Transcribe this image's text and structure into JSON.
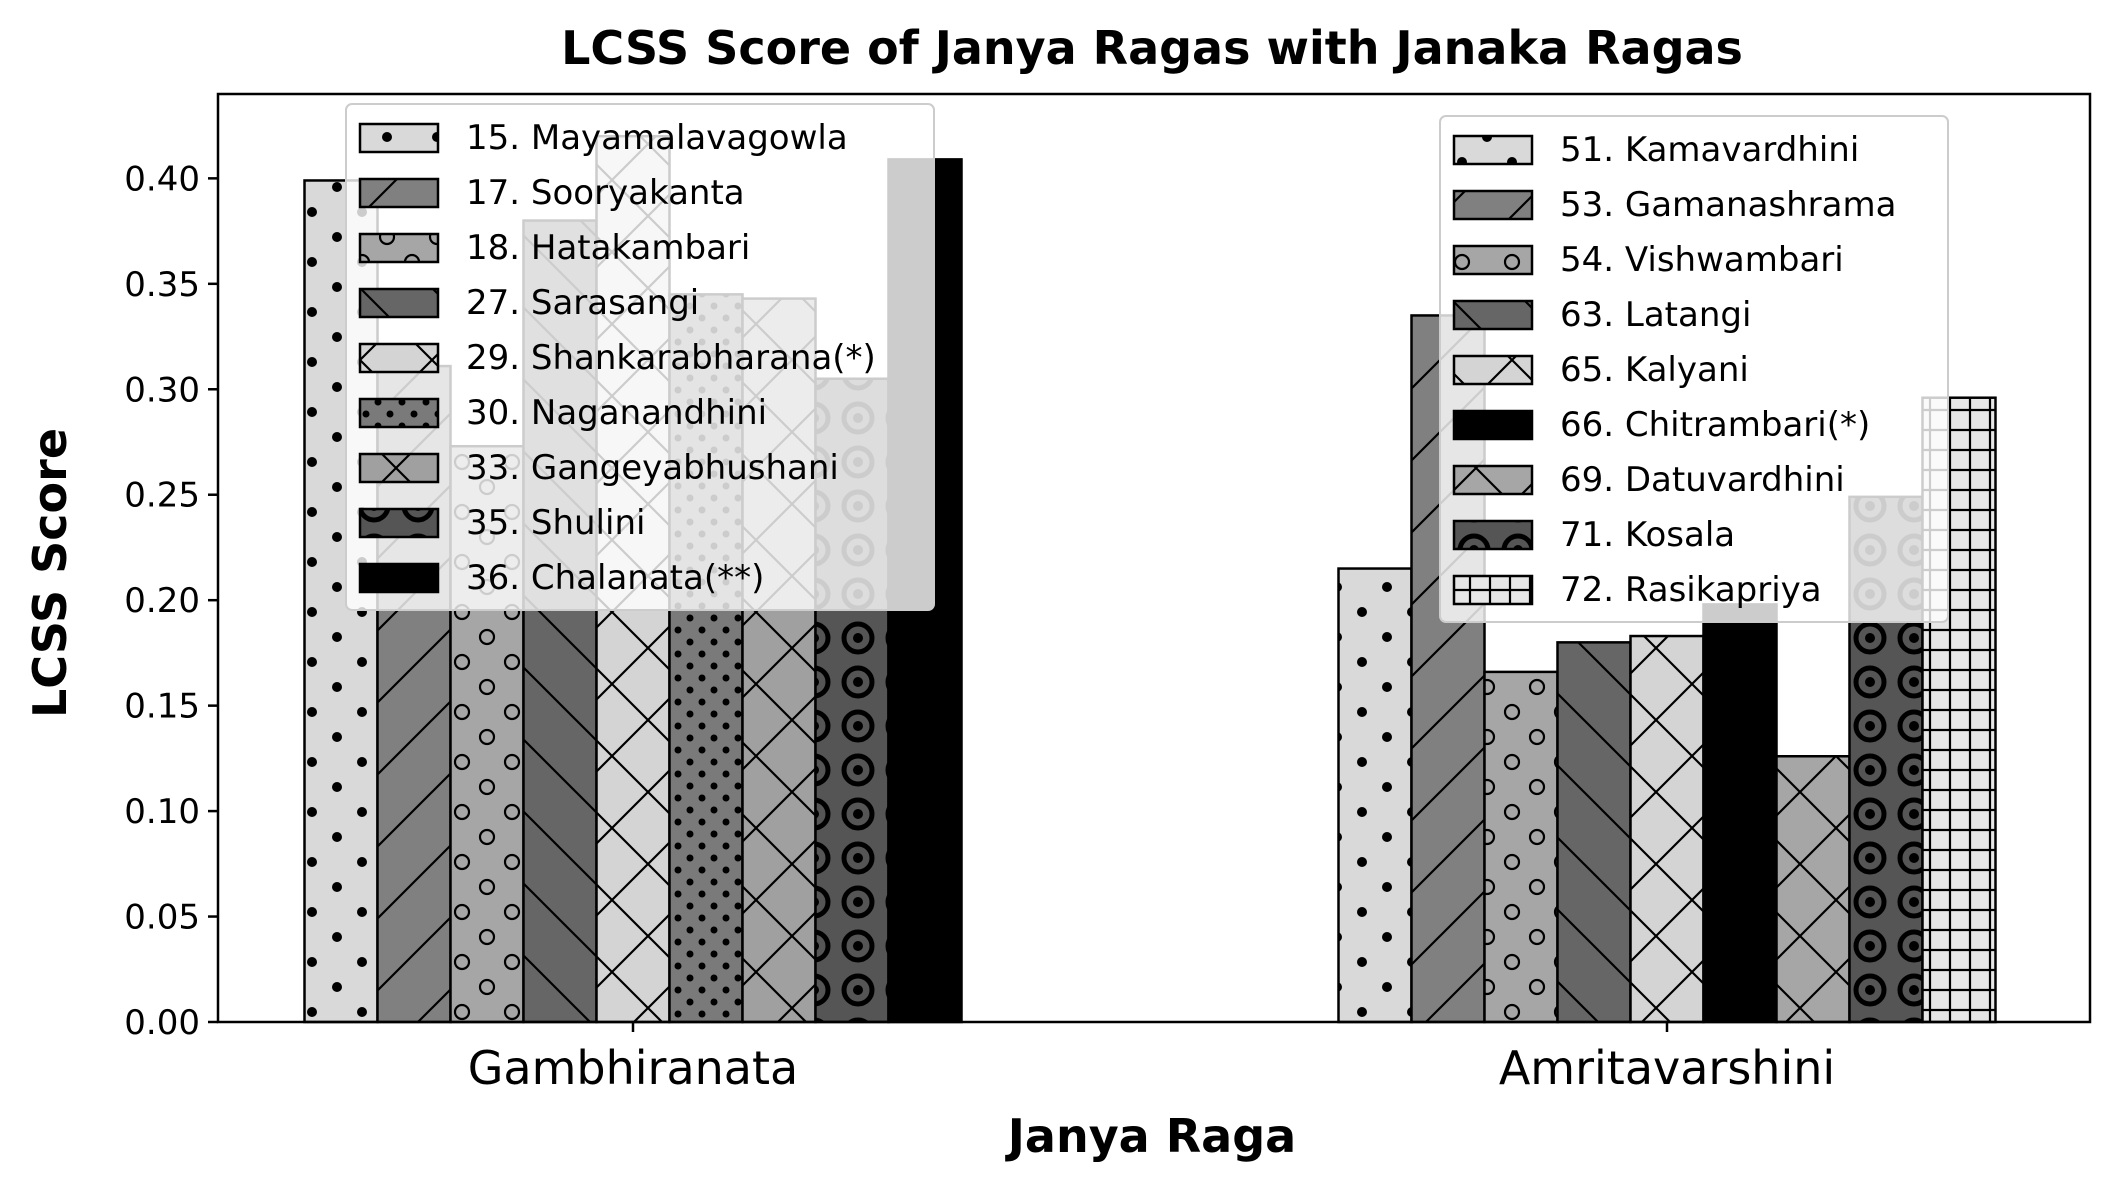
{
  "chart_data": {
    "type": "bar",
    "title": "LCSS Score of Janya Ragas with Janaka Ragas",
    "xlabel": "Janya Raga",
    "ylabel": "LCSS Score",
    "ylim": [
      0,
      0.44
    ],
    "yticks": [
      0.0,
      0.05,
      0.1,
      0.15,
      0.2,
      0.25,
      0.3,
      0.35,
      0.4
    ],
    "ytick_labels": [
      "0.00",
      "0.05",
      "0.10",
      "0.15",
      "0.20",
      "0.25",
      "0.30",
      "0.35",
      "0.40"
    ],
    "grid": false,
    "groups": [
      {
        "category": "Gambhiranata",
        "legend_position": "upper-left",
        "series": [
          {
            "name": "15. Mayamalavagowla",
            "value": 0.399,
            "fill": "#d9d9d9",
            "hatch": "dots-sparse"
          },
          {
            "name": "17. Sooryakanta",
            "value": 0.311,
            "fill": "#808080",
            "hatch": "diagonal"
          },
          {
            "name": "18. Hatakambari",
            "value": 0.273,
            "fill": "#a6a6a6",
            "hatch": "circles"
          },
          {
            "name": "27. Sarasangi",
            "value": 0.38,
            "fill": "#666666",
            "hatch": "backdiagonal"
          },
          {
            "name": "29. Shankarabharana(*)",
            "value": 0.42,
            "fill": "#d4d4d4",
            "hatch": "cross"
          },
          {
            "name": "30. Naganandhini",
            "value": 0.345,
            "fill": "#7a7a7a",
            "hatch": "dots-dense"
          },
          {
            "name": "33. Gangeyabhushani",
            "value": 0.343,
            "fill": "#a0a0a0",
            "hatch": "cross"
          },
          {
            "name": "35. Shulini",
            "value": 0.305,
            "fill": "#555555",
            "hatch": "rings"
          },
          {
            "name": "36. Chalanata(**)",
            "value": 0.409,
            "fill": "#000000",
            "hatch": "none"
          }
        ]
      },
      {
        "category": "Amritavarshini",
        "legend_position": "upper-right",
        "series": [
          {
            "name": "51. Kamavardhini",
            "value": 0.215,
            "fill": "#d9d9d9",
            "hatch": "dots-sparse"
          },
          {
            "name": "53. Gamanashrama",
            "value": 0.335,
            "fill": "#808080",
            "hatch": "diagonal"
          },
          {
            "name": "54. Vishwambari",
            "value": 0.166,
            "fill": "#a6a6a6",
            "hatch": "circles"
          },
          {
            "name": "63. Latangi",
            "value": 0.18,
            "fill": "#666666",
            "hatch": "backdiagonal"
          },
          {
            "name": "65. Kalyani",
            "value": 0.183,
            "fill": "#d4d4d4",
            "hatch": "cross"
          },
          {
            "name": "66. Chitrambari(*)",
            "value": 0.198,
            "fill": "#000000",
            "hatch": "none"
          },
          {
            "name": "69. Datuvardhini",
            "value": 0.126,
            "fill": "#a6a6a6",
            "hatch": "cross"
          },
          {
            "name": "71. Kosala",
            "value": 0.249,
            "fill": "#555555",
            "hatch": "rings"
          },
          {
            "name": "72. Rasikapriya",
            "value": 0.296,
            "fill": "#e6e6e6",
            "hatch": "grid"
          }
        ]
      }
    ]
  }
}
